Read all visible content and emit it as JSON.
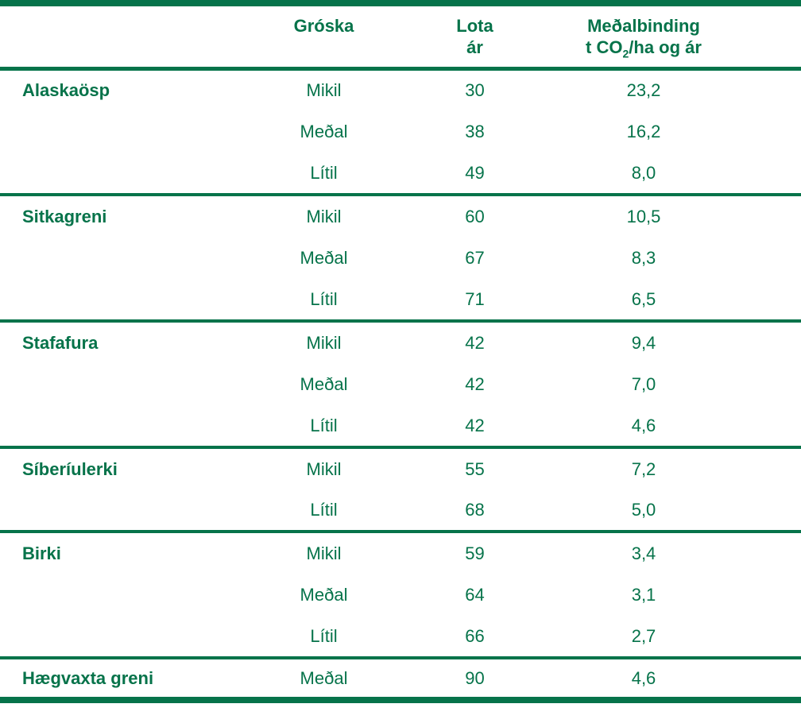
{
  "colors": {
    "green": "#06734A",
    "background": "#ffffff"
  },
  "table": {
    "header": {
      "species": "",
      "groska": "Gróska",
      "lota_line1": "Lota",
      "lota_line2": "ár",
      "binding_line1": "Meðalbinding",
      "binding_line2_pre": "t CO",
      "binding_line2_sub": "2",
      "binding_line2_post": "/ha og ár"
    },
    "groups": [
      {
        "species": "Alaskaösp",
        "rows": [
          {
            "groska": "Mikil",
            "lota": "30",
            "binding": "23,2"
          },
          {
            "groska": "Meðal",
            "lota": "38",
            "binding": "16,2"
          },
          {
            "groska": "Lítil",
            "lota": "49",
            "binding": "8,0"
          }
        ]
      },
      {
        "species": "Sitkagreni",
        "rows": [
          {
            "groska": "Mikil",
            "lota": "60",
            "binding": "10,5"
          },
          {
            "groska": "Meðal",
            "lota": "67",
            "binding": "8,3"
          },
          {
            "groska": "Lítil",
            "lota": "71",
            "binding": "6,5"
          }
        ]
      },
      {
        "species": "Stafafura",
        "rows": [
          {
            "groska": "Mikil",
            "lota": "42",
            "binding": "9,4"
          },
          {
            "groska": "Meðal",
            "lota": "42",
            "binding": "7,0"
          },
          {
            "groska": "Lítil",
            "lota": "42",
            "binding": "4,6"
          }
        ]
      },
      {
        "species": "Síberíulerki",
        "rows": [
          {
            "groska": "Mikil",
            "lota": "55",
            "binding": "7,2"
          },
          {
            "groska": "Lítil",
            "lota": "68",
            "binding": "5,0"
          }
        ]
      },
      {
        "species": "Birki",
        "rows": [
          {
            "groska": "Mikil",
            "lota": "59",
            "binding": "3,4"
          },
          {
            "groska": "Meðal",
            "lota": "64",
            "binding": "3,1"
          },
          {
            "groska": "Lítil",
            "lota": "66",
            "binding": "2,7"
          }
        ]
      },
      {
        "species": "Hægvaxta greni",
        "rows": [
          {
            "groska": "Meðal",
            "lota": "90",
            "binding": "4,6"
          }
        ]
      }
    ]
  },
  "chart_data": {
    "type": "table",
    "title": "",
    "columns": [
      "",
      "Gróska",
      "Lota ár",
      "Meðalbinding t CO2/ha og ár"
    ],
    "rows": [
      [
        "Alaskaösp",
        "Mikil",
        30,
        23.2
      ],
      [
        "Alaskaösp",
        "Meðal",
        38,
        16.2
      ],
      [
        "Alaskaösp",
        "Lítil",
        49,
        8.0
      ],
      [
        "Sitkagreni",
        "Mikil",
        60,
        10.5
      ],
      [
        "Sitkagreni",
        "Meðal",
        67,
        8.3
      ],
      [
        "Sitkagreni",
        "Lítil",
        71,
        6.5
      ],
      [
        "Stafafura",
        "Mikil",
        42,
        9.4
      ],
      [
        "Stafafura",
        "Meðal",
        42,
        7.0
      ],
      [
        "Stafafura",
        "Lítil",
        42,
        4.6
      ],
      [
        "Síberíulerki",
        "Mikil",
        55,
        7.2
      ],
      [
        "Síberíulerki",
        "Lítil",
        68,
        5.0
      ],
      [
        "Birki",
        "Mikil",
        59,
        3.4
      ],
      [
        "Birki",
        "Meðal",
        64,
        3.1
      ],
      [
        "Birki",
        "Lítil",
        66,
        2.7
      ],
      [
        "Hægvaxta greni",
        "Meðal",
        90,
        4.6
      ]
    ],
    "notes": "Decimal comma used in displayed values; text and rules all in green #06734A"
  }
}
